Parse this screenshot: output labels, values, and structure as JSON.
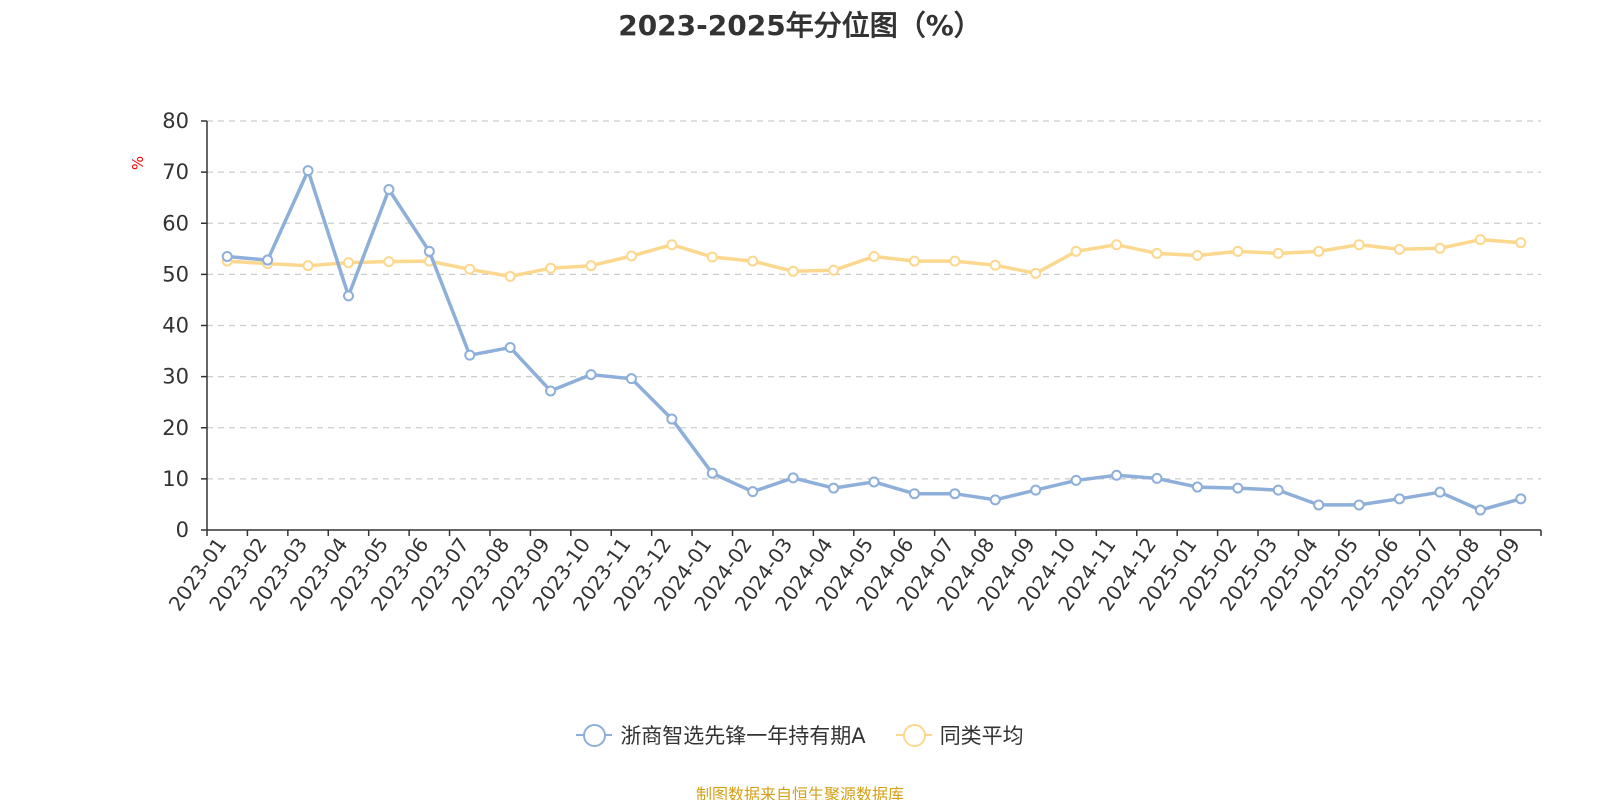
{
  "title": "2023-2025年分位图（%）",
  "source_note": "制图数据来自恒生聚源数据库",
  "legend": [
    {
      "name": "浙商智选先锋一年持有期A",
      "color": "#8eafd9"
    },
    {
      "name": "同类平均",
      "color": "#fcd88f"
    }
  ],
  "chart_data": {
    "type": "line",
    "title": "2023-2025年分位图（%）",
    "ylabel": "%",
    "ylabel_color": "#ff0000",
    "ylim": [
      0,
      80
    ],
    "yticks": [
      0,
      10,
      20,
      30,
      40,
      50,
      60,
      70,
      80
    ],
    "grid": true,
    "legend_position": "bottom",
    "categories": [
      "2023-01",
      "2023-02",
      "2023-03",
      "2023-04",
      "2023-05",
      "2023-06",
      "2023-07",
      "2023-08",
      "2023-09",
      "2023-10",
      "2023-11",
      "2023-12",
      "2024-01",
      "2024-02",
      "2024-03",
      "2024-04",
      "2024-05",
      "2024-06",
      "2024-07",
      "2024-08",
      "2024-09",
      "2024-10",
      "2024-11",
      "2024-12",
      "2025-01",
      "2025-02",
      "2025-03",
      "2025-04",
      "2025-05",
      "2025-06",
      "2025-07",
      "2025-08",
      "2025-09"
    ],
    "series": [
      {
        "name": "浙商智选先锋一年持有期A",
        "color": "#8eafd9",
        "values": [
          53.5,
          52.8,
          70.3,
          45.8,
          66.6,
          54.5,
          34.2,
          35.7,
          27.2,
          30.4,
          29.6,
          21.7,
          11.1,
          7.5,
          10.2,
          8.2,
          9.4,
          7.1,
          7.1,
          5.9,
          7.8,
          9.7,
          10.7,
          10.1,
          8.4,
          8.2,
          7.8,
          4.9,
          4.9,
          6.1,
          7.4,
          3.9,
          6.1
        ]
      },
      {
        "name": "同类平均",
        "color": "#fcd88f",
        "values": [
          52.6,
          52.1,
          51.7,
          52.3,
          52.5,
          52.6,
          51.0,
          49.6,
          51.2,
          51.7,
          53.6,
          55.8,
          53.4,
          52.6,
          50.6,
          50.8,
          53.5,
          52.6,
          52.6,
          51.8,
          50.2,
          54.5,
          55.8,
          54.1,
          53.7,
          54.5,
          54.1,
          54.5,
          55.8,
          54.9,
          55.1,
          56.8,
          56.2
        ]
      }
    ]
  }
}
